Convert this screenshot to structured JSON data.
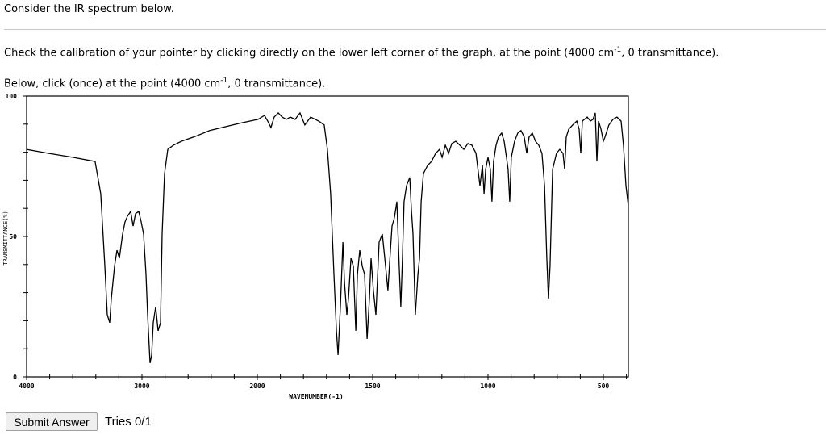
{
  "question": {
    "intro": "Consider the IR spectrum below.",
    "calibration_pre": "Check the calibration of your pointer by clicking directly on the lower left corner of the graph, at the point (4000 cm",
    "calibration_sup": "-1",
    "calibration_post": ", 0 transmittance).",
    "below_pre": "Below, click (once) at the point (4000 cm",
    "below_sup": "-1",
    "below_post": ", 0 transmittance)."
  },
  "footer": {
    "submit_label": "Submit Answer",
    "tries": "Tries 0/1"
  },
  "chart_data": {
    "type": "line",
    "title": "",
    "xlabel": "WAVENUMBER(-1)",
    "ylabel": "TRANSMITTANCE(%)",
    "xlim": [
      4000,
      392
    ],
    "ylim": [
      0,
      100
    ],
    "x_tick_labels": [
      "4000",
      "3000",
      "2000",
      "1500",
      "1000",
      "500"
    ],
    "y_tick_labels": [
      "0",
      "50",
      "100"
    ],
    "grid": false,
    "series": [
      {
        "name": "IR spectrum",
        "points": [
          [
            4000,
            81.0
          ],
          [
            3811,
            79.6
          ],
          [
            3601,
            78.2
          ],
          [
            3406,
            76.7
          ],
          [
            3357,
            65.2
          ],
          [
            3322,
            39.4
          ],
          [
            3301,
            22.1
          ],
          [
            3280,
            19.3
          ],
          [
            3266,
            27.9
          ],
          [
            3238,
            39.4
          ],
          [
            3217,
            45.1
          ],
          [
            3196,
            42.2
          ],
          [
            3168,
            50.9
          ],
          [
            3147,
            55.2
          ],
          [
            3126,
            57.2
          ],
          [
            3098,
            58.9
          ],
          [
            3077,
            53.7
          ],
          [
            3056,
            58.1
          ],
          [
            3028,
            58.9
          ],
          [
            3007,
            55.2
          ],
          [
            2986,
            50.9
          ],
          [
            2965,
            36.5
          ],
          [
            2951,
            22.1
          ],
          [
            2930,
            4.9
          ],
          [
            2916,
            7.8
          ],
          [
            2902,
            19.3
          ],
          [
            2881,
            25.0
          ],
          [
            2860,
            16.4
          ],
          [
            2839,
            19.3
          ],
          [
            2825,
            50.9
          ],
          [
            2804,
            72.4
          ],
          [
            2776,
            81.0
          ],
          [
            2727,
            82.5
          ],
          [
            2657,
            83.9
          ],
          [
            2552,
            85.4
          ],
          [
            2413,
            87.7
          ],
          [
            2273,
            89.1
          ],
          [
            2133,
            90.5
          ],
          [
            1997,
            91.7
          ],
          [
            1969,
            93.1
          ],
          [
            1955,
            91.1
          ],
          [
            1941,
            88.8
          ],
          [
            1927,
            92.5
          ],
          [
            1909,
            94.0
          ],
          [
            1892,
            92.5
          ],
          [
            1874,
            91.7
          ],
          [
            1857,
            92.5
          ],
          [
            1836,
            91.7
          ],
          [
            1815,
            94.0
          ],
          [
            1794,
            89.7
          ],
          [
            1769,
            92.5
          ],
          [
            1734,
            91.1
          ],
          [
            1710,
            89.7
          ],
          [
            1696,
            81.0
          ],
          [
            1682,
            65.2
          ],
          [
            1668,
            36.5
          ],
          [
            1657,
            16.4
          ],
          [
            1650,
            7.8
          ],
          [
            1640,
            25.0
          ],
          [
            1629,
            48.0
          ],
          [
            1622,
            33.6
          ],
          [
            1612,
            22.1
          ],
          [
            1605,
            27.9
          ],
          [
            1594,
            42.2
          ],
          [
            1584,
            39.4
          ],
          [
            1573,
            16.4
          ],
          [
            1566,
            36.5
          ],
          [
            1556,
            45.1
          ],
          [
            1545,
            39.4
          ],
          [
            1535,
            36.5
          ],
          [
            1524,
            13.5
          ],
          [
            1514,
            27.9
          ],
          [
            1507,
            42.2
          ],
          [
            1497,
            30.8
          ],
          [
            1486,
            22.1
          ],
          [
            1472,
            48.0
          ],
          [
            1458,
            50.9
          ],
          [
            1444,
            39.4
          ],
          [
            1434,
            30.8
          ],
          [
            1423,
            45.1
          ],
          [
            1416,
            53.7
          ],
          [
            1406,
            56.6
          ],
          [
            1395,
            62.4
          ],
          [
            1385,
            39.4
          ],
          [
            1378,
            25.0
          ],
          [
            1371,
            42.2
          ],
          [
            1364,
            62.4
          ],
          [
            1353,
            68.1
          ],
          [
            1339,
            71.0
          ],
          [
            1332,
            59.5
          ],
          [
            1325,
            50.9
          ],
          [
            1315,
            22.1
          ],
          [
            1304,
            36.5
          ],
          [
            1297,
            42.2
          ],
          [
            1290,
            62.4
          ],
          [
            1280,
            72.4
          ],
          [
            1262,
            75.3
          ],
          [
            1245,
            76.7
          ],
          [
            1227,
            79.6
          ],
          [
            1210,
            81.0
          ],
          [
            1199,
            78.2
          ],
          [
            1185,
            82.5
          ],
          [
            1171,
            79.6
          ],
          [
            1157,
            83.1
          ],
          [
            1140,
            83.9
          ],
          [
            1122,
            82.5
          ],
          [
            1105,
            81.0
          ],
          [
            1087,
            83.1
          ],
          [
            1070,
            82.5
          ],
          [
            1052,
            79.6
          ],
          [
            1035,
            68.1
          ],
          [
            1024,
            75.3
          ],
          [
            1017,
            65.2
          ],
          [
            1010,
            73.9
          ],
          [
            1000,
            78.2
          ],
          [
            990,
            73.9
          ],
          [
            983,
            62.4
          ],
          [
            976,
            76.7
          ],
          [
            965,
            82.5
          ],
          [
            955,
            85.4
          ],
          [
            941,
            86.8
          ],
          [
            930,
            83.9
          ],
          [
            920,
            78.2
          ],
          [
            913,
            73.9
          ],
          [
            906,
            62.4
          ],
          [
            899,
            78.2
          ],
          [
            885,
            83.9
          ],
          [
            871,
            86.8
          ],
          [
            857,
            87.7
          ],
          [
            843,
            85.4
          ],
          [
            832,
            79.6
          ],
          [
            822,
            85.4
          ],
          [
            808,
            86.8
          ],
          [
            794,
            83.9
          ],
          [
            780,
            82.5
          ],
          [
            766,
            79.6
          ],
          [
            755,
            68.1
          ],
          [
            745,
            42.2
          ],
          [
            738,
            27.9
          ],
          [
            731,
            39.4
          ],
          [
            720,
            73.9
          ],
          [
            703,
            79.6
          ],
          [
            689,
            81.0
          ],
          [
            675,
            79.6
          ],
          [
            668,
            73.9
          ],
          [
            661,
            85.4
          ],
          [
            650,
            88.2
          ],
          [
            633,
            89.7
          ],
          [
            615,
            91.1
          ],
          [
            605,
            88.2
          ],
          [
            598,
            79.6
          ],
          [
            591,
            91.1
          ],
          [
            570,
            92.5
          ],
          [
            556,
            91.1
          ],
          [
            545,
            91.7
          ],
          [
            535,
            94.0
          ],
          [
            528,
            76.7
          ],
          [
            521,
            91.1
          ],
          [
            510,
            88.2
          ],
          [
            500,
            83.9
          ],
          [
            493,
            85.4
          ],
          [
            476,
            89.7
          ],
          [
            458,
            91.7
          ],
          [
            441,
            92.5
          ],
          [
            423,
            91.1
          ],
          [
            413,
            82.5
          ],
          [
            402,
            68.1
          ],
          [
            392,
            61.0
          ]
        ]
      }
    ]
  }
}
